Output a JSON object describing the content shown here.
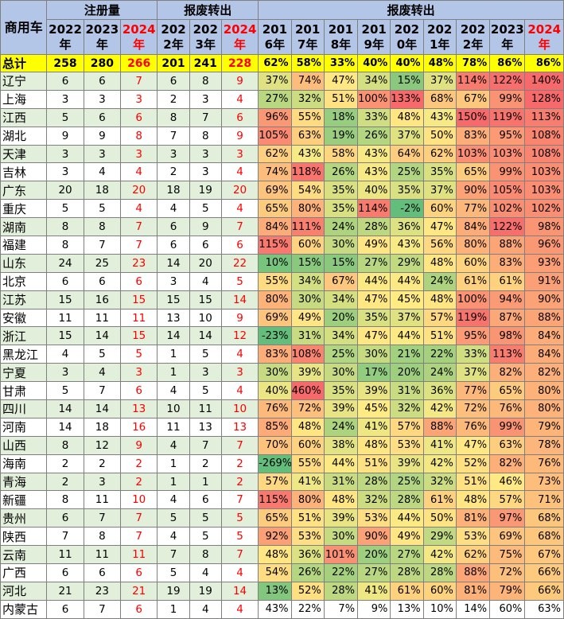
{
  "table": {
    "corner_label": "商用车",
    "groups": [
      "注册量",
      "报废转出",
      "报废转出"
    ],
    "register_years": [
      "2022年",
      "2023年",
      "2024年"
    ],
    "scrap_years": [
      "2022年",
      "2023年",
      "2024年"
    ],
    "rate_years": [
      "2016年",
      "2017年",
      "2018年",
      "2019年",
      "2020年",
      "2021年",
      "2022年",
      "2023年",
      "2024年"
    ],
    "register_years_display": [
      [
        "2022",
        "年"
      ],
      [
        "2023",
        "年"
      ],
      [
        "2024",
        "年"
      ]
    ],
    "scrap_years_display": [
      [
        "202",
        "2年"
      ],
      [
        "202",
        "3年"
      ],
      [
        "2024",
        "年"
      ]
    ],
    "rate_years_display": [
      [
        "201",
        "6年"
      ],
      [
        "201",
        "7年"
      ],
      [
        "201",
        "8年"
      ],
      [
        "201",
        "9年"
      ],
      [
        "202",
        "0年"
      ],
      [
        "202",
        "1年"
      ],
      [
        "202",
        "2年"
      ],
      [
        "2023",
        "年"
      ],
      [
        "2024",
        "年"
      ]
    ],
    "total": {
      "name": "总计",
      "reg": [
        258,
        280,
        266
      ],
      "scrap": [
        201,
        241,
        228
      ],
      "rates": [
        "62%",
        "58%",
        "33%",
        "40%",
        "40%",
        "48%",
        "78%",
        "86%",
        "86%"
      ]
    },
    "rows": [
      {
        "name": "辽宁",
        "reg": [
          6,
          6,
          7
        ],
        "scrap": [
          6,
          8,
          9
        ],
        "rates": [
          "37%",
          "74%",
          "47%",
          "34%",
          "15%",
          "37%",
          "114%",
          "122%",
          "140%"
        ]
      },
      {
        "name": "上海",
        "reg": [
          3,
          3,
          3
        ],
        "scrap": [
          2,
          3,
          4
        ],
        "rates": [
          "27%",
          "32%",
          "51%",
          "100%",
          "133%",
          "68%",
          "67%",
          "99%",
          "128%"
        ]
      },
      {
        "name": "江西",
        "reg": [
          5,
          6,
          6
        ],
        "scrap": [
          8,
          7,
          6
        ],
        "rates": [
          "96%",
          "55%",
          "18%",
          "33%",
          "48%",
          "43%",
          "150%",
          "119%",
          "113%"
        ]
      },
      {
        "name": "湖北",
        "reg": [
          9,
          9,
          8
        ],
        "scrap": [
          7,
          8,
          9
        ],
        "rates": [
          "105%",
          "63%",
          "19%",
          "26%",
          "37%",
          "50%",
          "83%",
          "95%",
          "108%"
        ]
      },
      {
        "name": "天津",
        "reg": [
          3,
          3,
          3
        ],
        "scrap": [
          3,
          3,
          3
        ],
        "rates": [
          "62%",
          "43%",
          "58%",
          "43%",
          "64%",
          "62%",
          "103%",
          "103%",
          "108%"
        ]
      },
      {
        "name": "吉林",
        "reg": [
          3,
          4,
          4
        ],
        "scrap": [
          2,
          3,
          4
        ],
        "rates": [
          "74%",
          "118%",
          "26%",
          "43%",
          "25%",
          "35%",
          "65%",
          "99%",
          "103%"
        ]
      },
      {
        "name": "广东",
        "reg": [
          20,
          18,
          20
        ],
        "scrap": [
          18,
          19,
          20
        ],
        "rates": [
          "69%",
          "54%",
          "35%",
          "40%",
          "35%",
          "37%",
          "90%",
          "105%",
          "103%"
        ]
      },
      {
        "name": "重庆",
        "reg": [
          5,
          5,
          4
        ],
        "scrap": [
          4,
          5,
          4
        ],
        "rates": [
          "65%",
          "80%",
          "35%",
          "114%",
          "-2%",
          "60%",
          "77%",
          "102%",
          "102%"
        ]
      },
      {
        "name": "湖南",
        "reg": [
          8,
          8,
          7
        ],
        "scrap": [
          6,
          9,
          7
        ],
        "rates": [
          "84%",
          "111%",
          "24%",
          "28%",
          "36%",
          "47%",
          "84%",
          "122%",
          "98%"
        ]
      },
      {
        "name": "福建",
        "reg": [
          8,
          7,
          7
        ],
        "scrap": [
          6,
          6,
          6
        ],
        "rates": [
          "115%",
          "60%",
          "30%",
          "49%",
          "43%",
          "56%",
          "80%",
          "88%",
          "96%"
        ]
      },
      {
        "name": "山东",
        "reg": [
          24,
          25,
          23
        ],
        "scrap": [
          14,
          20,
          22
        ],
        "rates": [
          "10%",
          "15%",
          "15%",
          "27%",
          "29%",
          "48%",
          "60%",
          "83%",
          "93%"
        ]
      },
      {
        "name": "北京",
        "reg": [
          6,
          6,
          6
        ],
        "scrap": [
          3,
          4,
          5
        ],
        "rates": [
          "55%",
          "34%",
          "67%",
          "44%",
          "44%",
          "24%",
          "61%",
          "61%",
          "91%"
        ]
      },
      {
        "name": "江苏",
        "reg": [
          15,
          16,
          15
        ],
        "scrap": [
          15,
          15,
          14
        ],
        "rates": [
          "80%",
          "30%",
          "34%",
          "47%",
          "45%",
          "48%",
          "100%",
          "94%",
          "90%"
        ]
      },
      {
        "name": "安徽",
        "reg": [
          11,
          11,
          11
        ],
        "scrap": [
          13,
          10,
          9
        ],
        "rates": [
          "69%",
          "49%",
          "20%",
          "35%",
          "37%",
          "57%",
          "119%",
          "87%",
          "88%"
        ]
      },
      {
        "name": "浙江",
        "reg": [
          15,
          14,
          15
        ],
        "scrap": [
          14,
          14,
          12
        ],
        "rates": [
          "-23%",
          "31%",
          "34%",
          "47%",
          "44%",
          "51%",
          "95%",
          "98%",
          "84%"
        ]
      },
      {
        "name": "黑龙江",
        "reg": [
          4,
          5,
          5
        ],
        "scrap": [
          1,
          5,
          4
        ],
        "rates": [
          "83%",
          "108%",
          "25%",
          "30%",
          "21%",
          "22%",
          "33%",
          "113%",
          "84%"
        ]
      },
      {
        "name": "宁夏",
        "reg": [
          3,
          4,
          3
        ],
        "scrap": [
          1,
          3,
          3
        ],
        "rates": [
          "30%",
          "39%",
          "30%",
          "17%",
          "20%",
          "24%",
          "37%",
          "82%",
          "82%"
        ]
      },
      {
        "name": "甘肃",
        "reg": [
          5,
          7,
          6
        ],
        "scrap": [
          4,
          5,
          4
        ],
        "rates": [
          "40%",
          "460%",
          "35%",
          "39%",
          "31%",
          "36%",
          "77%",
          "65%",
          "80%"
        ]
      },
      {
        "name": "四川",
        "reg": [
          14,
          14,
          13
        ],
        "scrap": [
          10,
          11,
          10
        ],
        "rates": [
          "76%",
          "72%",
          "39%",
          "45%",
          "32%",
          "42%",
          "72%",
          "76%",
          "80%"
        ]
      },
      {
        "name": "河南",
        "reg": [
          14,
          18,
          16
        ],
        "scrap": [
          11,
          13,
          13
        ],
        "rates": [
          "85%",
          "48%",
          "24%",
          "41%",
          "57%",
          "88%",
          "76%",
          "99%",
          "79%"
        ]
      },
      {
        "name": "山西",
        "reg": [
          8,
          12,
          9
        ],
        "scrap": [
          4,
          7,
          7
        ],
        "rates": [
          "70%",
          "60%",
          "38%",
          "48%",
          "53%",
          "41%",
          "47%",
          "63%",
          "78%"
        ]
      },
      {
        "name": "海南",
        "reg": [
          2,
          2,
          2
        ],
        "scrap": [
          1,
          2,
          2
        ],
        "rates": [
          "-269%",
          "55%",
          "44%",
          "51%",
          "39%",
          "42%",
          "52%",
          "82%",
          "76%"
        ]
      },
      {
        "name": "青海",
        "reg": [
          2,
          3,
          2
        ],
        "scrap": [
          1,
          1,
          2
        ],
        "rates": [
          "57%",
          "41%",
          "31%",
          "28%",
          "25%",
          "32%",
          "51%",
          "46%",
          "73%"
        ]
      },
      {
        "name": "新疆",
        "reg": [
          8,
          11,
          10
        ],
        "scrap": [
          4,
          6,
          7
        ],
        "rates": [
          "115%",
          "80%",
          "48%",
          "32%",
          "28%",
          "61%",
          "48%",
          "57%",
          "71%"
        ]
      },
      {
        "name": "贵州",
        "reg": [
          6,
          7,
          7
        ],
        "scrap": [
          5,
          5,
          5
        ],
        "rates": [
          "65%",
          "51%",
          "39%",
          "53%",
          "44%",
          "50%",
          "81%",
          "97%",
          "68%"
        ]
      },
      {
        "name": "陕西",
        "reg": [
          7,
          8,
          7
        ],
        "scrap": [
          4,
          5,
          5
        ],
        "rates": [
          "92%",
          "53%",
          "30%",
          "90%",
          "49%",
          "29%",
          "53%",
          "69%",
          "68%"
        ]
      },
      {
        "name": "云南",
        "reg": [
          11,
          11,
          11
        ],
        "scrap": [
          7,
          8,
          7
        ],
        "rates": [
          "48%",
          "36%",
          "101%",
          "20%",
          "27%",
          "42%",
          "62%",
          "75%",
          "67%"
        ]
      },
      {
        "name": "广西",
        "reg": [
          6,
          6,
          6
        ],
        "scrap": [
          5,
          4,
          4
        ],
        "rates": [
          "54%",
          "26%",
          "22%",
          "27%",
          "28%",
          "28%",
          "88%",
          "72%",
          "66%"
        ]
      },
      {
        "name": "河北",
        "reg": [
          21,
          23,
          21
        ],
        "scrap": [
          19,
          19,
          14
        ],
        "rates": [
          "13%",
          "52%",
          "28%",
          "41%",
          "61%",
          "60%",
          "81%",
          "79%",
          "66%"
        ]
      },
      {
        "name": "内蒙古",
        "reg": [
          6,
          7,
          6
        ],
        "scrap": [
          1,
          4,
          4
        ],
        "rates": [
          "43%",
          "22%",
          "7%",
          "9%",
          "13%",
          "10%",
          "14%",
          "60%",
          "63%"
        ]
      }
    ]
  },
  "chart_data": {
    "type": "table",
    "title": "",
    "columns": [
      "商用车",
      "注册量 2022年",
      "注册量 2023年",
      "注册量 2024年",
      "报废转出 2022年",
      "报废转出 2023年",
      "报废转出 2024年",
      "报废转出 2016年",
      "报废转出 2017年",
      "报废转出 2018年",
      "报废转出 2019年",
      "报废转出 2020年",
      "报废转出 2021年",
      "报废转出 2022年",
      "报废转出 2023年",
      "报废转出 2024年"
    ],
    "colors": {
      "header": "#b4c6e7",
      "total_row": "#ffff00",
      "region_alt": "#e2efda",
      "red_text": "#ff0000",
      "scale_low": "#63be7b",
      "scale_mid": "#ffeb84",
      "scale_high": "#f8696b"
    }
  }
}
